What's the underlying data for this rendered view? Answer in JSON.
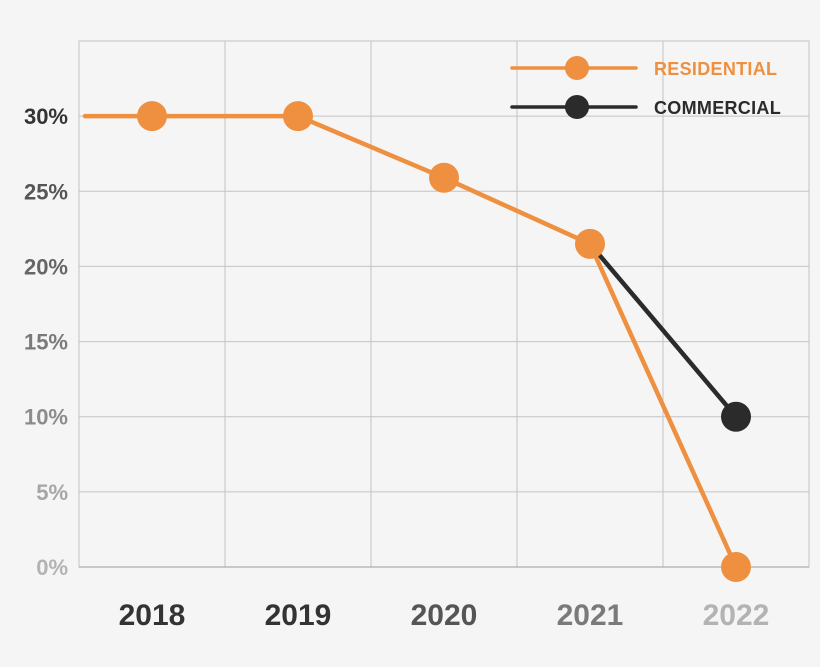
{
  "chart_data": {
    "type": "line",
    "categories": [
      "2018",
      "2019",
      "2020",
      "2021",
      "2022"
    ],
    "series": [
      {
        "name": "RESIDENTIAL",
        "color": "#ee9040",
        "values": [
          30,
          30,
          25.9,
          21.5,
          0
        ]
      },
      {
        "name": "COMMERCIAL",
        "color": "#2b2b2b",
        "values": [
          null,
          null,
          null,
          21.5,
          10
        ]
      }
    ],
    "ylim": [
      0,
      35
    ],
    "yticks": [
      0,
      5,
      10,
      15,
      20,
      25,
      30
    ],
    "ytick_labels": [
      "0%",
      "5%",
      "10%",
      "15%",
      "20%",
      "25%",
      "30%"
    ],
    "ytick_colors": [
      "#b3b3b3",
      "#a6a6a6",
      "#8c8c8c",
      "#7a7a7a",
      "#666666",
      "#555555",
      "#333333"
    ],
    "xtick_colors": [
      "#333333",
      "#333333",
      "#555555",
      "#7a7a7a",
      "#b3b3b3"
    ],
    "grid": true,
    "legend_position": "top-right",
    "title": "",
    "xlabel": "",
    "ylabel": ""
  }
}
